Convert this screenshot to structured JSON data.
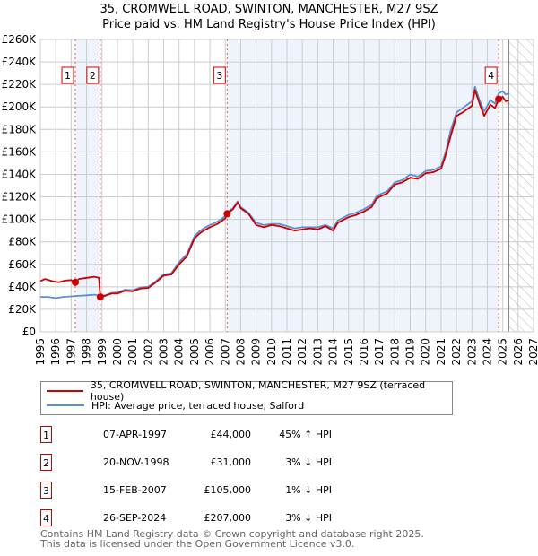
{
  "title_line1": "35, CROMWELL ROAD, SWINTON, MANCHESTER, M27 9SZ",
  "title_line2": "Price paid vs. HM Land Registry's House Price Index (HPI)",
  "chart_data": {
    "type": "line",
    "xlim": [
      1995,
      2027
    ],
    "ylim": [
      0,
      260000
    ],
    "x_ticks": [
      1995,
      1996,
      1997,
      1998,
      1999,
      2000,
      2001,
      2002,
      2003,
      2004,
      2005,
      2006,
      2007,
      2008,
      2009,
      2010,
      2011,
      2012,
      2013,
      2014,
      2015,
      2016,
      2017,
      2018,
      2019,
      2020,
      2021,
      2022,
      2023,
      2024,
      2025,
      2026,
      2027
    ],
    "y_ticks": [
      0,
      20000,
      40000,
      60000,
      80000,
      100000,
      120000,
      140000,
      160000,
      180000,
      200000,
      220000,
      240000,
      260000
    ],
    "y_tick_labels": [
      "£0",
      "£20K",
      "£40K",
      "£60K",
      "£80K",
      "£100K",
      "£120K",
      "£140K",
      "£160K",
      "£180K",
      "£200K",
      "£220K",
      "£240K",
      "£260K"
    ],
    "grid": true,
    "shaded_ranges": [
      [
        1997.27,
        1998.89
      ],
      [
        2007.12,
        2024.74
      ]
    ],
    "forecast_hatch_from": 2025.4,
    "series": [
      {
        "name": "35, CROMWELL ROAD, SWINTON, MANCHESTER, M27 9SZ (terraced house)",
        "color": "#cc0000",
        "points": [
          [
            1995,
            45
          ],
          [
            1995.3,
            47
          ],
          [
            1995.8,
            45
          ],
          [
            1996.2,
            44
          ],
          [
            1996.6,
            45.5
          ],
          [
            1997,
            46
          ],
          [
            1997.27,
            44
          ],
          [
            1997.5,
            47
          ],
          [
            1998,
            48
          ],
          [
            1998.5,
            49
          ],
          [
            1998.8,
            48
          ],
          [
            1998.89,
            31
          ],
          [
            1999.2,
            32
          ],
          [
            1999.6,
            34
          ],
          [
            2000,
            34
          ],
          [
            2000.5,
            36.5
          ],
          [
            2001,
            36
          ],
          [
            2001.5,
            38.5
          ],
          [
            2002,
            39
          ],
          [
            2002.5,
            44
          ],
          [
            2003,
            50
          ],
          [
            2003.5,
            51
          ],
          [
            2004,
            60
          ],
          [
            2004.5,
            67
          ],
          [
            2005,
            83
          ],
          [
            2005.3,
            87
          ],
          [
            2005.6,
            90
          ],
          [
            2006,
            93
          ],
          [
            2006.5,
            96
          ],
          [
            2007,
            101
          ],
          [
            2007.12,
            105
          ],
          [
            2007.5,
            109
          ],
          [
            2007.8,
            115
          ],
          [
            2008,
            110
          ],
          [
            2008.5,
            105
          ],
          [
            2009,
            95
          ],
          [
            2009.5,
            93
          ],
          [
            2010,
            95
          ],
          [
            2010.5,
            94
          ],
          [
            2011,
            92
          ],
          [
            2011.5,
            90
          ],
          [
            2012,
            91
          ],
          [
            2012.5,
            92
          ],
          [
            2013,
            91
          ],
          [
            2013.5,
            94
          ],
          [
            2014,
            90
          ],
          [
            2014.3,
            97
          ],
          [
            2015,
            102
          ],
          [
            2015.5,
            104
          ],
          [
            2016,
            107
          ],
          [
            2016.5,
            111
          ],
          [
            2016.8,
            118
          ],
          [
            2017,
            120
          ],
          [
            2017.5,
            123
          ],
          [
            2018,
            131
          ],
          [
            2018.5,
            133
          ],
          [
            2019,
            137
          ],
          [
            2019.5,
            136
          ],
          [
            2020,
            141
          ],
          [
            2020.5,
            142
          ],
          [
            2021,
            145
          ],
          [
            2021.3,
            157
          ],
          [
            2021.6,
            173
          ],
          [
            2022,
            192
          ],
          [
            2022.5,
            196
          ],
          [
            2023,
            201
          ],
          [
            2023.2,
            215
          ],
          [
            2023.5,
            203
          ],
          [
            2023.8,
            192
          ],
          [
            2024.2,
            202
          ],
          [
            2024.5,
            199
          ],
          [
            2024.74,
            207
          ],
          [
            2025,
            209
          ],
          [
            2025.2,
            205
          ],
          [
            2025.4,
            206
          ]
        ]
      },
      {
        "name": "HPI: Average price, terraced house, Salford",
        "color": "#5b8fd4",
        "points": [
          [
            1995,
            31
          ],
          [
            1995.5,
            31
          ],
          [
            1996,
            30
          ],
          [
            1996.5,
            31
          ],
          [
            1997,
            31.5
          ],
          [
            1997.5,
            32
          ],
          [
            1998,
            32.5
          ],
          [
            1998.5,
            33
          ],
          [
            1998.89,
            32
          ],
          [
            1999.2,
            32.5
          ],
          [
            1999.6,
            34.5
          ],
          [
            2000,
            35
          ],
          [
            2000.5,
            37.5
          ],
          [
            2001,
            37
          ],
          [
            2001.5,
            39.5
          ],
          [
            2002,
            40
          ],
          [
            2002.5,
            45
          ],
          [
            2003,
            51
          ],
          [
            2003.5,
            52
          ],
          [
            2004,
            62
          ],
          [
            2004.5,
            69
          ],
          [
            2005,
            85
          ],
          [
            2005.3,
            89
          ],
          [
            2005.6,
            92
          ],
          [
            2006,
            95
          ],
          [
            2006.5,
            98
          ],
          [
            2007,
            103
          ],
          [
            2007.12,
            106
          ],
          [
            2007.5,
            110
          ],
          [
            2007.8,
            116
          ],
          [
            2008,
            111
          ],
          [
            2008.5,
            106
          ],
          [
            2009,
            97
          ],
          [
            2009.5,
            95
          ],
          [
            2010,
            96
          ],
          [
            2010.5,
            96
          ],
          [
            2011,
            94
          ],
          [
            2011.5,
            92
          ],
          [
            2012,
            93
          ],
          [
            2012.5,
            93
          ],
          [
            2013,
            93
          ],
          [
            2013.5,
            95
          ],
          [
            2014,
            92
          ],
          [
            2014.3,
            99
          ],
          [
            2015,
            104
          ],
          [
            2015.5,
            106
          ],
          [
            2016,
            109
          ],
          [
            2016.5,
            113
          ],
          [
            2016.8,
            120
          ],
          [
            2017,
            122
          ],
          [
            2017.5,
            125
          ],
          [
            2018,
            133
          ],
          [
            2018.5,
            135
          ],
          [
            2019,
            140
          ],
          [
            2019.5,
            138
          ],
          [
            2020,
            143
          ],
          [
            2020.5,
            144
          ],
          [
            2021,
            147
          ],
          [
            2021.3,
            160
          ],
          [
            2021.6,
            178
          ],
          [
            2022,
            195
          ],
          [
            2022.5,
            200
          ],
          [
            2023,
            205
          ],
          [
            2023.2,
            218
          ],
          [
            2023.5,
            206
          ],
          [
            2023.8,
            196
          ],
          [
            2024.2,
            206
          ],
          [
            2024.5,
            203
          ],
          [
            2024.74,
            212
          ],
          [
            2025,
            214
          ],
          [
            2025.2,
            211
          ],
          [
            2025.4,
            212
          ]
        ]
      }
    ],
    "sales": [
      {
        "id": "1",
        "year": 1997.27,
        "value": 44000
      },
      {
        "id": "2",
        "year": 1998.89,
        "value": 31000
      },
      {
        "id": "3",
        "year": 2007.12,
        "value": 105000
      },
      {
        "id": "4",
        "year": 2024.74,
        "value": 207000
      }
    ]
  },
  "legend": {
    "property": "35, CROMWELL ROAD, SWINTON, MANCHESTER, M27 9SZ (terraced house)",
    "hpi": "HPI: Average price, terraced house, Salford"
  },
  "transactions": [
    {
      "id": "1",
      "date": "07-APR-1997",
      "price": "£44,000",
      "hpi": "45% ↑ HPI"
    },
    {
      "id": "2",
      "date": "20-NOV-1998",
      "price": "£31,000",
      "hpi": "3% ↓ HPI"
    },
    {
      "id": "3",
      "date": "15-FEB-2007",
      "price": "£105,000",
      "hpi": "1% ↓ HPI"
    },
    {
      "id": "4",
      "date": "26-SEP-2024",
      "price": "£207,000",
      "hpi": "3% ↓ HPI"
    }
  ],
  "footer_line1": "Contains HM Land Registry data © Crown copyright and database right 2025.",
  "footer_line2": "This data is licensed under the Open Government Licence v3.0."
}
